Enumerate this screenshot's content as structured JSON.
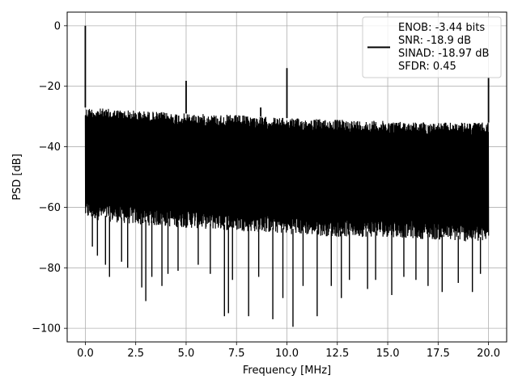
{
  "chart_data": {
    "type": "line",
    "title": "",
    "xlabel": "Frequency [MHz]",
    "ylabel": "PSD [dB]",
    "xlim": [
      -0.9,
      20.9
    ],
    "ylim": [
      -104.5,
      4.5
    ],
    "xticks": [
      0.0,
      2.5,
      5.0,
      7.5,
      10.0,
      12.5,
      15.0,
      17.5,
      20.0
    ],
    "xtick_labels": [
      "0.0",
      "2.5",
      "5.0",
      "7.5",
      "10.0",
      "12.5",
      "15.0",
      "17.5",
      "20.0"
    ],
    "yticks": [
      0,
      -20,
      -40,
      -60,
      -80,
      -100
    ],
    "ytick_labels": [
      "0",
      "−20",
      "−40",
      "−60",
      "−80",
      "−100"
    ],
    "grid": true,
    "legend_position": "top-right",
    "legend_lines": [
      "ENOB: -3.44 bits",
      "SNR: -18.9 dB",
      "SINAD: -18.97 dB",
      "SFDR: 0.45"
    ],
    "series": [
      {
        "color": "#000000",
        "noise_floor": {
          "x_range": [
            0.0,
            20.0
          ],
          "upper_envelope": [
            [
              0.0,
              -27
            ],
            [
              2.5,
              -28
            ],
            [
              5.0,
              -29
            ],
            [
              7.5,
              -29.5
            ],
            [
              10.0,
              -30.5
            ],
            [
              12.5,
              -31
            ],
            [
              15.0,
              -31.5
            ],
            [
              17.5,
              -32
            ],
            [
              20.0,
              -32
            ]
          ],
          "lower_envelope": [
            [
              0.0,
              -62
            ],
            [
              2.5,
              -64
            ],
            [
              5.0,
              -65
            ],
            [
              7.5,
              -66
            ],
            [
              10.0,
              -67
            ],
            [
              12.5,
              -68
            ],
            [
              15.0,
              -68
            ],
            [
              17.5,
              -69
            ],
            [
              20.0,
              -70
            ]
          ]
        },
        "peaks": [
          [
            0.0,
            0.0
          ],
          [
            5.0,
            -18.2
          ],
          [
            10.0,
            -14.0
          ],
          [
            20.0,
            -17.2
          ],
          [
            8.7,
            -27
          ]
        ],
        "dips": [
          [
            0.35,
            -73
          ],
          [
            0.6,
            -76
          ],
          [
            1.0,
            -79
          ],
          [
            1.2,
            -83
          ],
          [
            1.8,
            -78
          ],
          [
            2.1,
            -80
          ],
          [
            2.8,
            -86.5
          ],
          [
            3.0,
            -91
          ],
          [
            3.3,
            -83
          ],
          [
            3.8,
            -86
          ],
          [
            4.1,
            -82
          ],
          [
            4.6,
            -81
          ],
          [
            5.6,
            -79
          ],
          [
            6.2,
            -82
          ],
          [
            6.9,
            -96
          ],
          [
            7.1,
            -95
          ],
          [
            7.3,
            -84
          ],
          [
            8.1,
            -96
          ],
          [
            8.6,
            -83
          ],
          [
            9.3,
            -97
          ],
          [
            9.8,
            -90
          ],
          [
            10.3,
            -99.5
          ],
          [
            10.8,
            -86
          ],
          [
            11.5,
            -96
          ],
          [
            12.2,
            -86
          ],
          [
            12.7,
            -90
          ],
          [
            13.1,
            -84
          ],
          [
            14.0,
            -87
          ],
          [
            14.4,
            -84
          ],
          [
            15.2,
            -89
          ],
          [
            15.8,
            -83
          ],
          [
            16.4,
            -84
          ],
          [
            17.0,
            -86
          ],
          [
            17.7,
            -88
          ],
          [
            18.5,
            -85
          ],
          [
            19.2,
            -88
          ],
          [
            19.6,
            -82
          ]
        ]
      }
    ]
  }
}
